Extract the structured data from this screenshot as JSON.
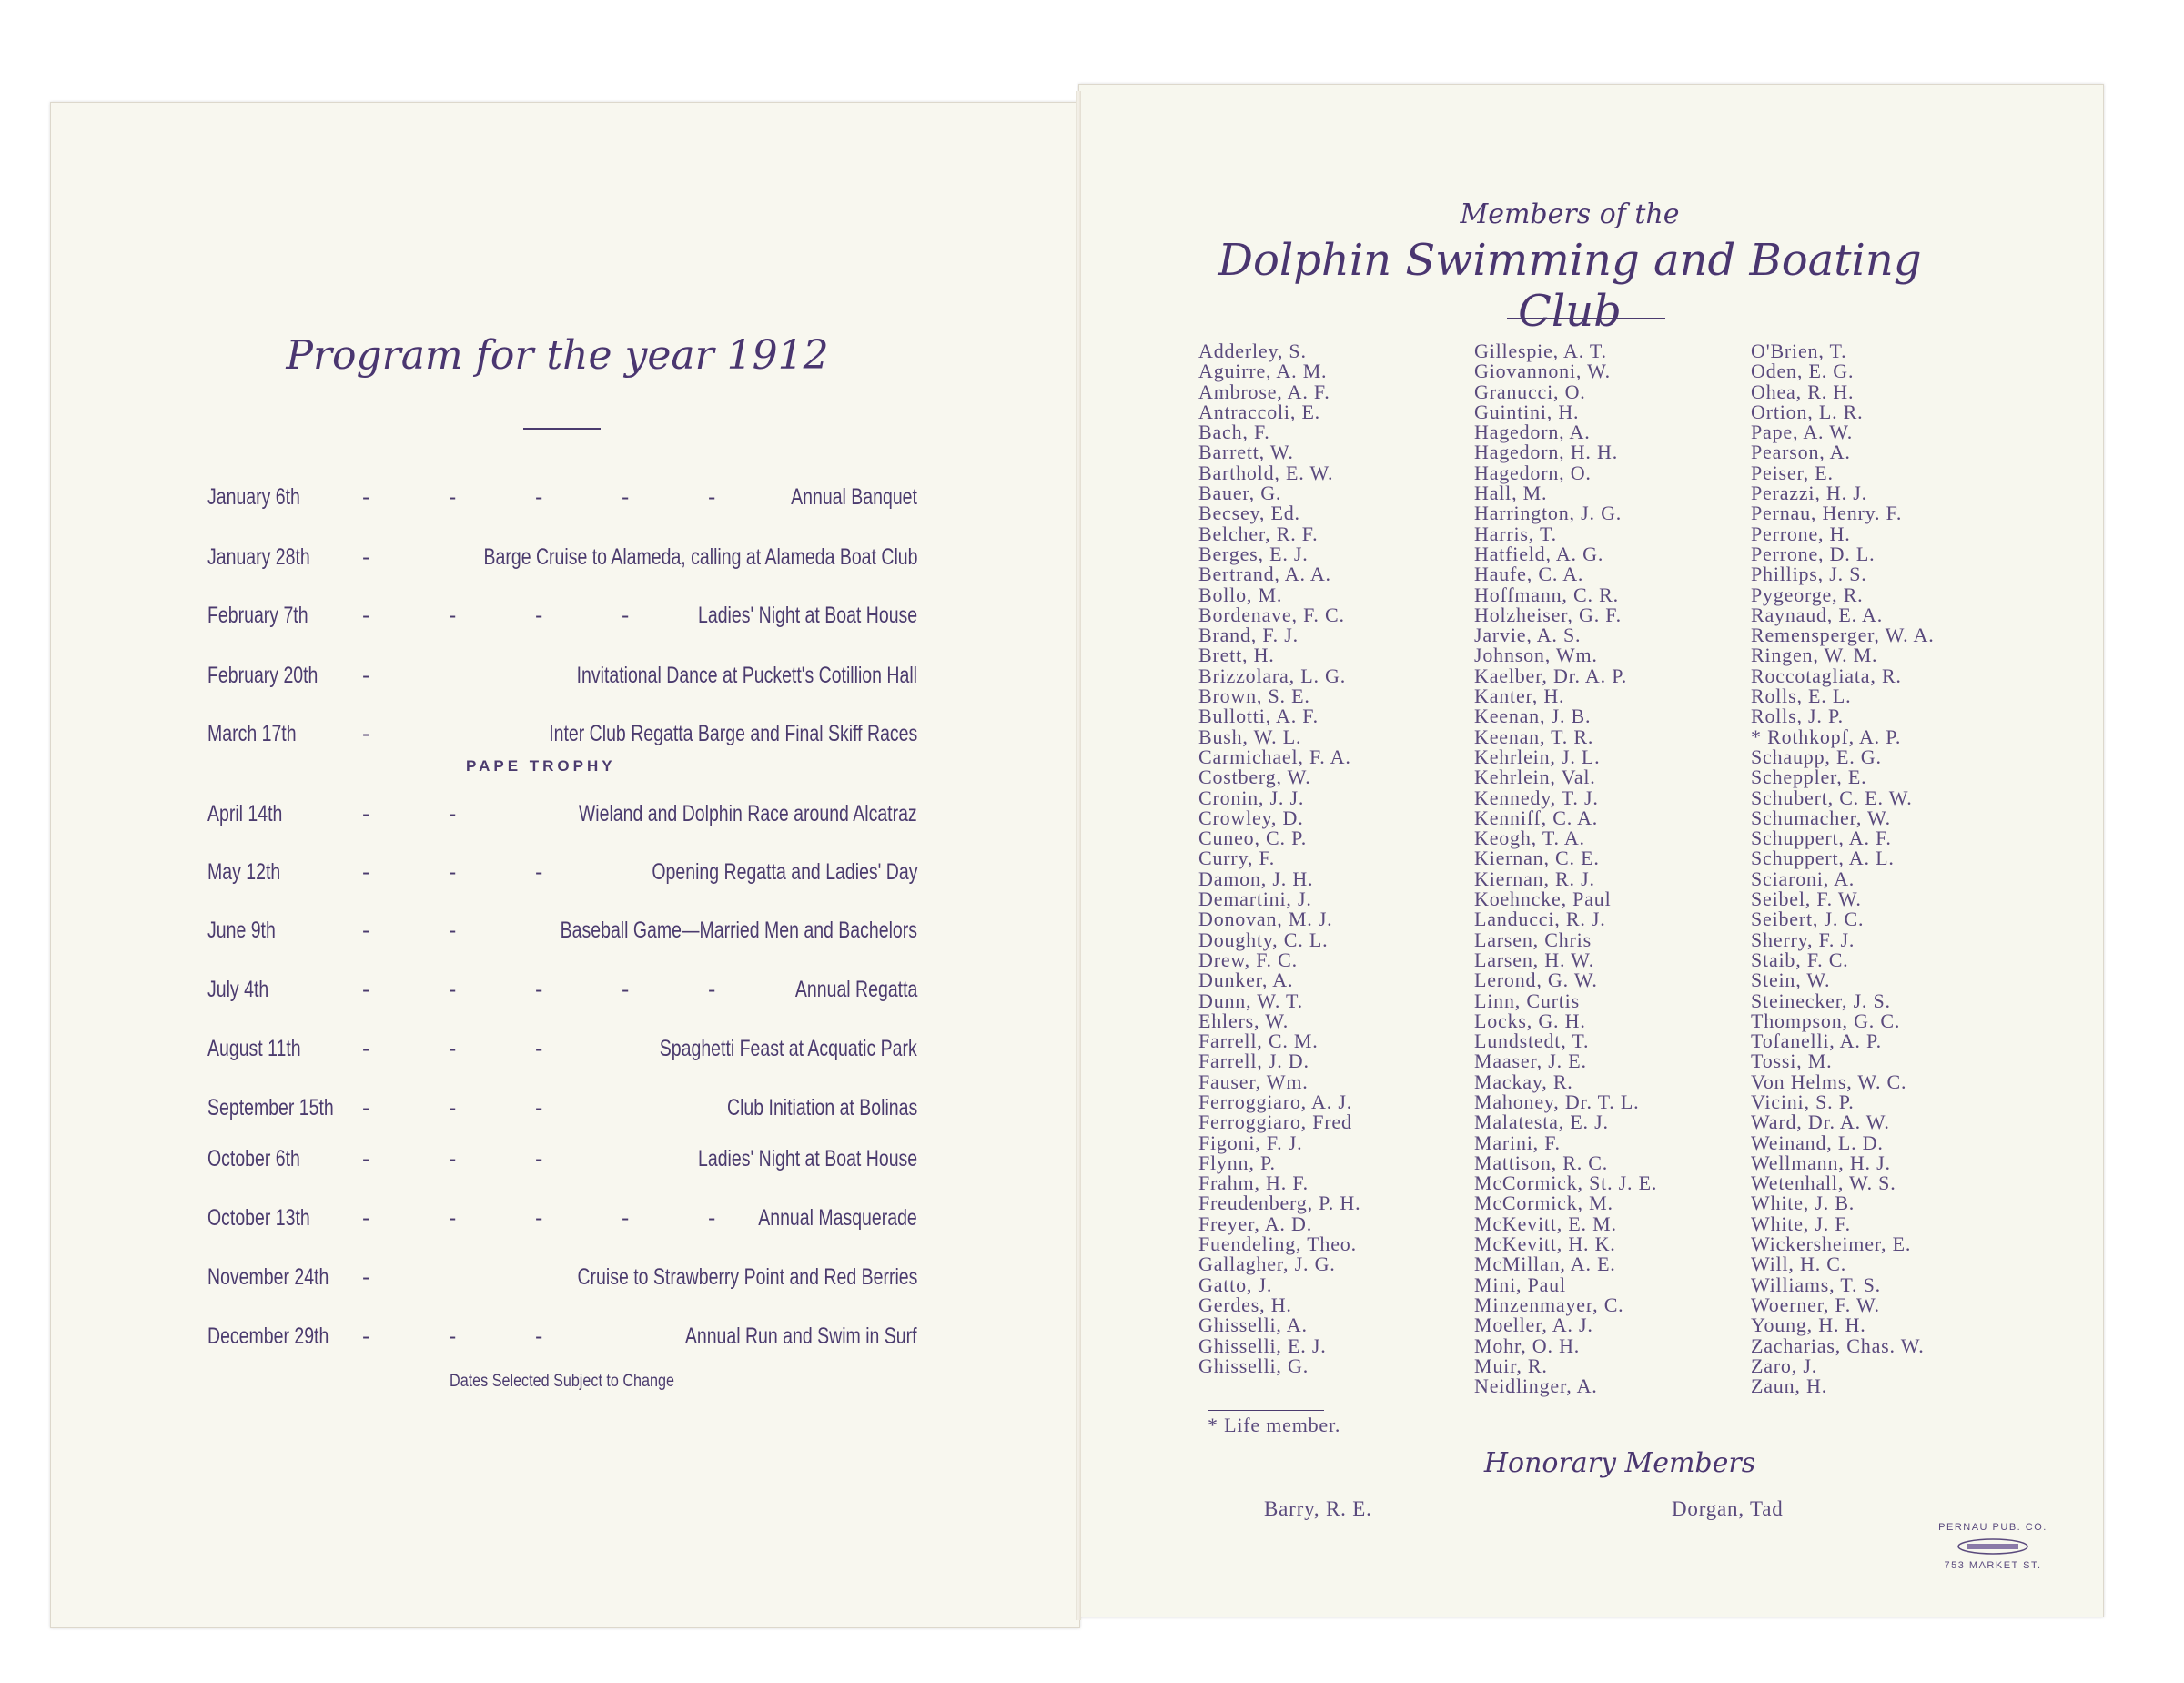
{
  "program": {
    "title": "Program for the year 1912",
    "events": [
      {
        "date": "January 6th",
        "event": "Annual Banquet",
        "dashes": 5
      },
      {
        "date": "January 28th",
        "event": "Barge Cruise to Alameda, calling at Alameda Boat Club",
        "dashes": 1
      },
      {
        "date": "February 7th",
        "event": "Ladies' Night at Boat House",
        "dashes": 4
      },
      {
        "date": "February 20th",
        "event": "Invitational Dance at Puckett's Cotillion Hall",
        "dashes": 1
      },
      {
        "date": "March 17th",
        "event": "Inter Club Regatta Barge and Final Skiff Races",
        "dashes": 1
      },
      {
        "date": "April 14th",
        "event": "Wieland and Dolphin Race around Alcatraz",
        "dashes": 2
      },
      {
        "date": "May 12th",
        "event": "Opening Regatta and Ladies' Day",
        "dashes": 3
      },
      {
        "date": "June 9th",
        "event": "Baseball Game—Married Men and Bachelors",
        "dashes": 2
      },
      {
        "date": "July 4th",
        "event": "Annual Regatta",
        "dashes": 5
      },
      {
        "date": "August 11th",
        "event": "Spaghetti Feast at Acquatic Park",
        "dashes": 3
      },
      {
        "date": "September 15th",
        "event": "Club Initiation at Bolinas",
        "dashes": 3
      },
      {
        "date": "October 6th",
        "event": "Ladies' Night at Boat House",
        "dashes": 3
      },
      {
        "date": "October 13th",
        "event": "Annual Masquerade",
        "dashes": 5
      },
      {
        "date": "November 24th",
        "event": "Cruise to Strawberry Point and Red Berries",
        "dashes": 1
      },
      {
        "date": "December 29th",
        "event": "Annual Run and Swim in Surf",
        "dashes": 3
      }
    ],
    "pape_trophy": "PAPE TROPHY",
    "note": "Dates Selected Subject to Change"
  },
  "members": {
    "heading_small": "Members of the",
    "heading": "Dolphin Swimming and Boating Club",
    "columns": [
      [
        "Adderley, S.",
        "Aguirre, A. M.",
        "Ambrose, A. F.",
        "Antraccoli, E.",
        "Bach, F.",
        "Barrett, W.",
        "Barthold, E. W.",
        "Bauer, G.",
        "Becsey, Ed.",
        "Belcher, R. F.",
        "Berges, E. J.",
        "Bertrand, A. A.",
        "Bollo, M.",
        "Bordenave, F. C.",
        "Brand, F. J.",
        "Brett, H.",
        "Brizzolara, L. G.",
        "Brown, S. E.",
        "Bullotti, A. F.",
        "Bush, W. L.",
        "Carmichael, F. A.",
        "Costberg, W.",
        "Cronin, J. J.",
        "Crowley, D.",
        "Cuneo, C. P.",
        "Curry, F.",
        "Damon, J. H.",
        "Demartini, J.",
        "Donovan, M. J.",
        "Doughty, C. L.",
        "Drew, F. C.",
        "Dunker, A.",
        "Dunn, W. T.",
        "Ehlers, W.",
        "Farrell, C. M.",
        "Farrell, J. D.",
        "Fauser, Wm.",
        "Ferroggiaro, A. J.",
        "Ferroggiaro, Fred",
        "Figoni, F. J.",
        "Flynn, P.",
        "Frahm, H. F.",
        "Freudenberg, P. H.",
        "Freyer, A. D.",
        "Fuendeling, Theo.",
        "Gallagher, J. G.",
        "Gatto, J.",
        "Gerdes, H.",
        "Ghisselli, A.",
        "Ghisselli, E. J.",
        "Ghisselli, G."
      ],
      [
        "Gillespie, A. T.",
        "Giovannoni, W.",
        "Granucci, O.",
        "Guintini, H.",
        "Hagedorn, A.",
        "Hagedorn, H. H.",
        "Hagedorn, O.",
        "Hall, M.",
        "Harrington, J. G.",
        "Harris, T.",
        "Hatfield, A. G.",
        "Haufe, C. A.",
        "Hoffmann, C. R.",
        "Holzheiser, G. F.",
        "Jarvie, A. S.",
        "Johnson, Wm.",
        "Kaelber, Dr. A. P.",
        "Kanter, H.",
        "Keenan, J. B.",
        "Keenan, T. R.",
        "Kehrlein, J. L.",
        "Kehrlein, Val.",
        "Kennedy, T. J.",
        "Kenniff, C. A.",
        "Keogh, T. A.",
        "Kiernan, C. E.",
        "Kiernan, R. J.",
        "Koehncke, Paul",
        "Landucci, R. J.",
        "Larsen, Chris",
        "Larsen, H. W.",
        "Lerond, G. W.",
        "Linn, Curtis",
        "Locks, G. H.",
        "Lundstedt, T.",
        "Maaser, J. E.",
        "Mackay, R.",
        "Mahoney, Dr. T. L.",
        "Malatesta, E. J.",
        "Marini, F.",
        "Mattison, R. C.",
        "McCormick, St. J. E.",
        "McCormick, M.",
        "McKevitt, E. M.",
        "McKevitt, H. K.",
        "McMillan, A. E.",
        "Mini, Paul",
        "Minzenmayer, C.",
        "Moeller, A. J.",
        "Mohr, O. H.",
        "Muir, R.",
        "Neidlinger, A."
      ],
      [
        "O'Brien, T.",
        "Oden, E. G.",
        "Ohea, R. H.",
        "Ortion, L. R.",
        "Pape, A. W.",
        "Pearson, A.",
        "Peiser, E.",
        "Perazzi, H. J.",
        "Pernau, Henry. F.",
        "Perrone, H.",
        "Perrone, D. L.",
        "Phillips, J. S.",
        "Pygeorge, R.",
        "Raynaud, E. A.",
        "Remensperger, W. A.",
        "Ringen, W. M.",
        "Roccotagliata, R.",
        "Rolls, E. L.",
        "Rolls, J. P.",
        "* Rothkopf, A. P.",
        "Schaupp, E. G.",
        "Scheppler, E.",
        "Schubert, C. E. W.",
        "Schumacher, W.",
        "Schuppert, A. F.",
        "Schuppert, A. L.",
        "Sciaroni, A.",
        "Seibel, F. W.",
        "Seibert, J. C.",
        "Sherry, F. J.",
        "Staib, F. C.",
        "Stein, W.",
        "Steinecker, J. S.",
        "Thompson, G. C.",
        "Tofanelli, A. P.",
        "Tossi, M.",
        "Von Helms, W. C.",
        "Vicini, S. P.",
        "Ward, Dr. A. W.",
        "Weinand, L. D.",
        "Wellmann, H. J.",
        "Wetenhall, W. S.",
        "White, J. B.",
        "White, J. F.",
        "Wickersheimer, E.",
        "Will, H. C.",
        "Williams, T. S.",
        "Woerner, F. W.",
        "Young, H. H.",
        "Zacharias, Chas. W.",
        "Zaro, J.",
        "Zaun, H."
      ]
    ],
    "life_member_note": "* Life member.",
    "honorary_heading": "Honorary Members",
    "honorary": [
      "Barry, R. E.",
      "Dorgan, Tad"
    ]
  },
  "publisher": {
    "name": "PERNAU PUB. CO.",
    "address": "753 MARKET ST."
  },
  "colors": {
    "ink": "#4b3b6e",
    "paper": "#f8f7ef"
  }
}
